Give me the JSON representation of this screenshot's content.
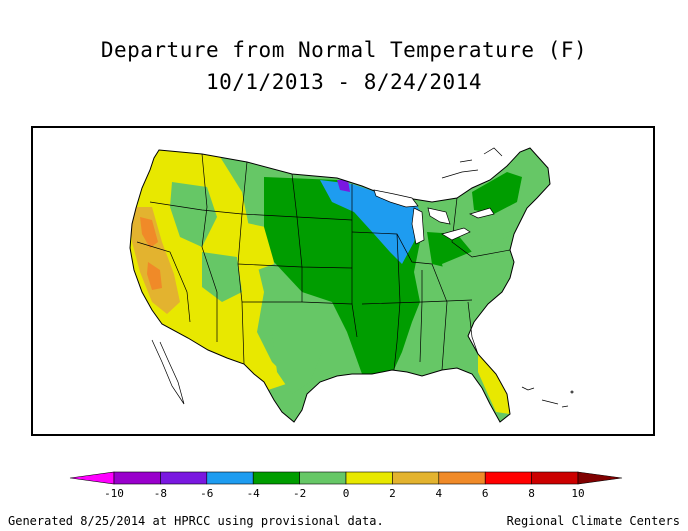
{
  "title": {
    "line1": "Departure from Normal Temperature (F)",
    "line2": "10/1/2013 - 8/24/2014"
  },
  "legend": {
    "ticks": [
      "-10",
      "-8",
      "-6",
      "-4",
      "-2",
      "0",
      "2",
      "4",
      "6",
      "8",
      "10"
    ],
    "colors": [
      "#ff00ff",
      "#9900cc",
      "#7a18e0",
      "#1e9cf0",
      "#009d00",
      "#66c766",
      "#e8e800",
      "#e3b32f",
      "#f08a28",
      "#ff0000",
      "#cc0000",
      "#800000"
    ]
  },
  "footer": {
    "left": "Generated 8/25/2014 at HPRCC using provisional data.",
    "right": "Regional Climate Centers"
  }
}
